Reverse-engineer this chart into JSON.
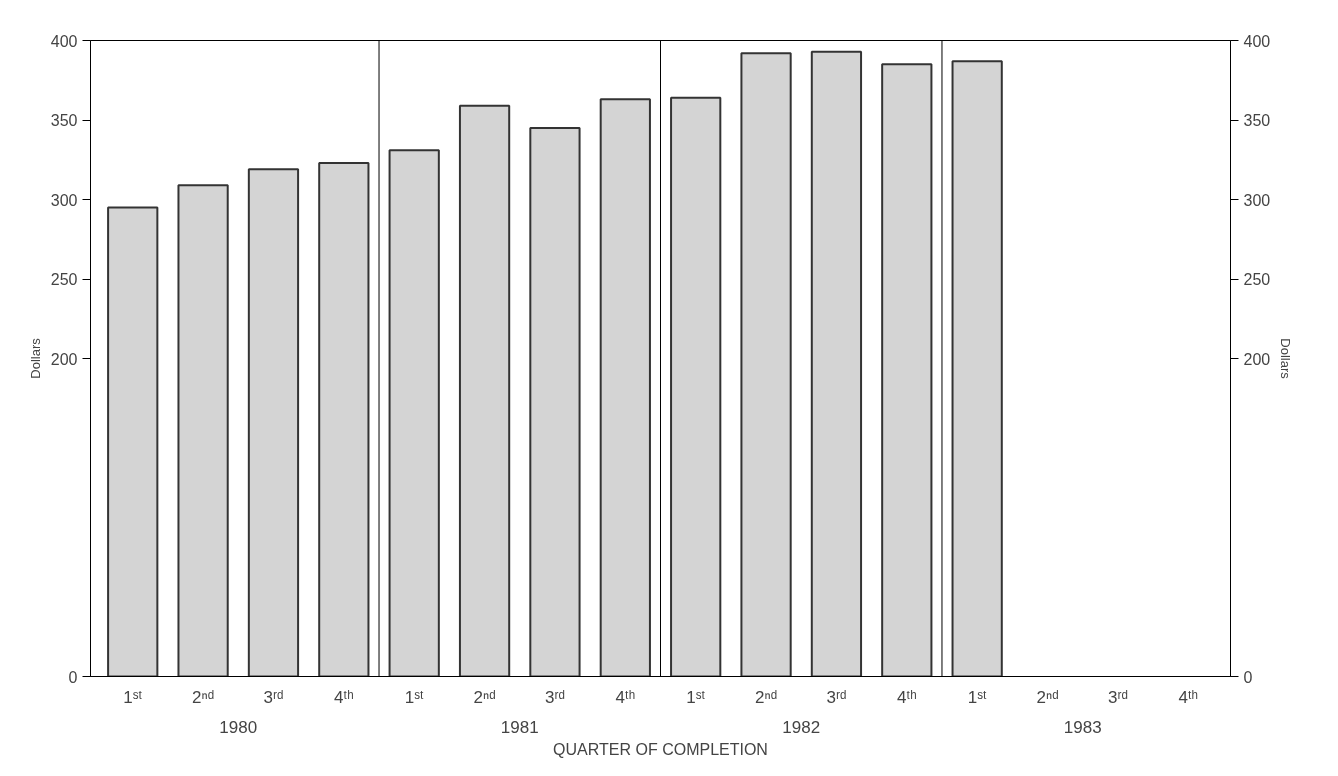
{
  "chart_data": {
    "type": "bar",
    "xlabel": "QUARTER OF COMPLETION",
    "ylabel": "Dollars",
    "y2label": "Dollars",
    "categories": [
      "1ˢᵗ",
      "2ⁿᵈ",
      "3ʳᵈ",
      "4ᵗʰ",
      "1ˢᵗ",
      "2ⁿᵈ",
      "3ʳᵈ",
      "4ᵗʰ",
      "1ˢᵗ",
      "2ⁿᵈ",
      "3ʳᵈ",
      "4ᵗʰ",
      "1ˢᵗ",
      "2ⁿᵈ",
      "3ʳᵈ",
      "4ᵗʰ"
    ],
    "values": [
      295,
      309,
      319,
      323,
      331,
      359,
      345,
      363,
      364,
      392,
      393,
      385,
      387,
      null,
      null,
      null
    ],
    "color": "#d4d4d4",
    "ylim": [
      0,
      400
    ],
    "yticks": [
      0,
      200,
      250,
      300,
      350,
      400
    ],
    "y2lim": [
      0,
      400
    ],
    "y2ticks": [
      0,
      200,
      250,
      300,
      350,
      400
    ],
    "annotations": [
      "1980",
      "1981",
      "1982",
      "1983"
    ],
    "grid": false
  }
}
